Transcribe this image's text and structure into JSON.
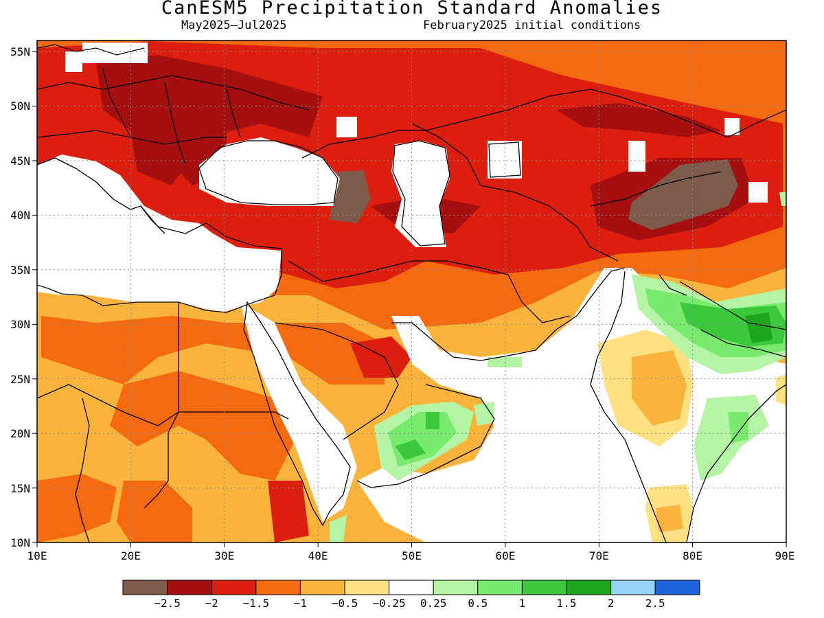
{
  "title": "CanESM5 Precipitation Standard Anomalies",
  "period": "May2025–Jul2025",
  "init": "February2025 initial conditions",
  "axes": {
    "lon_labels": [
      "10E",
      "20E",
      "30E",
      "40E",
      "50E",
      "60E",
      "70E",
      "80E",
      "90E"
    ],
    "lat_labels": [
      "55N",
      "50N",
      "45N",
      "40N",
      "35N",
      "30N",
      "25N",
      "20N",
      "15N",
      "10N"
    ],
    "lon_range": [
      10,
      90
    ],
    "lat_range": [
      10,
      56
    ],
    "grid": "dotted"
  },
  "colorbar": {
    "colors": [
      "#7d5a4a",
      "#a50f0f",
      "#dc1e0f",
      "#f5690f",
      "#fab43c",
      "#ffe182",
      "#ffffff",
      "#b4f5a5",
      "#78eb6e",
      "#3cc83c",
      "#1ea51e",
      "#96d2fa",
      "#1e64dc"
    ],
    "labels": [
      "−2.5",
      "−2",
      "−1.5",
      "−1",
      "−0.5",
      "−0.25",
      "0.25",
      "0.5",
      "1",
      "1.5",
      "2",
      "2.5"
    ]
  },
  "colors": {
    "land_mask": "#ffffff",
    "coast": "#000000"
  }
}
